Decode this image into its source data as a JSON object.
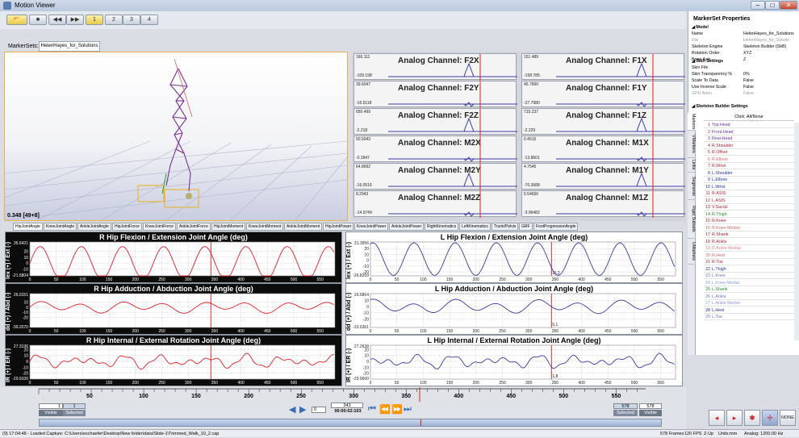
{
  "window": {
    "title": "Motion Viewer"
  },
  "toolbar": {
    "buttons": [
      "open",
      "stop",
      "rewind",
      "forward",
      "1",
      "2",
      "3",
      "4"
    ]
  },
  "markersets": {
    "label": "MarkerSets:",
    "tab": "HelenHayes_for_Solutions"
  },
  "view3d": {
    "readout": "0.348 [49+8]"
  },
  "analog": [
    {
      "name": "Analog Channel: F2X",
      "max": "166.111",
      "min": "-109.198"
    },
    {
      "name": "Analog Channel: F1X",
      "max": "151.489",
      "min": "-158.785"
    },
    {
      "name": "Analog Channel: F2Y",
      "max": "39.6047",
      "min": "-16.9118"
    },
    {
      "name": "Analog Channel: F1Y",
      "max": "45.7650",
      "min": "-27.7980"
    },
    {
      "name": "Analog Channel: F2Z",
      "max": "650.499",
      "min": "-2.218"
    },
    {
      "name": "Analog Channel: F1Z",
      "max": "715.237",
      "min": "-2.229"
    },
    {
      "name": "Analog Channel: M2X",
      "max": "50.5043",
      "min": "-0.1847"
    },
    {
      "name": "Analog Channel: M1X",
      "max": "0.4515",
      "min": "-13.8601"
    },
    {
      "name": "Analog Channel: M2Y",
      "max": "64.8692",
      "min": "-16.0516"
    },
    {
      "name": "Analog Channel: M1Y",
      "max": "4.7545",
      "min": "-70.3688"
    },
    {
      "name": "Analog Channel: M2Z",
      "max": "8.2943",
      "min": "-14.9749"
    },
    {
      "name": "Analog Channel: M1Z",
      "max": "6.54656",
      "min": "-3.96482"
    }
  ],
  "tabs": [
    "HipJointAngle",
    "KneeJointAngle",
    "AnkleJointAngle",
    "HipJointForce",
    "KneeJointForce",
    "AnkleJointForce",
    "HipJointMoment",
    "KneeJointMoment",
    "AnkleJointMoment",
    "HipJointPower",
    "KneeJointPower",
    "AnkleJointPower",
    "RightKinematics",
    "LeftKinematics",
    "Trunk/Pelvis",
    "GRF",
    "FootProgressionAngle"
  ],
  "charts": [
    {
      "title": "R Hip Flexion / Extension Joint Angle (deg)",
      "ylabel": "lex (+) / Ext (-)",
      "ymax": "35.6421",
      "ymin": "-21.5804",
      "yticks": [
        "20",
        "10",
        "0",
        "-10"
      ],
      "color": "#e0202a",
      "dark": true
    },
    {
      "title": "L Hip Flexion / Extension Joint Angle (deg)",
      "ylabel": "lex (+) / Ext (-)",
      "ymax": "31.3956",
      "ymin": "-26.8269",
      "yticks": [
        "20",
        "10",
        "0",
        "-10",
        "-20"
      ],
      "color": "#3a3aa8",
      "dark": false,
      "cursor": "11.2"
    },
    {
      "title": "R Hip Adduction / Abduction Joint Angle (deg)",
      "ylabel": "dd (+) / Abd (-)",
      "ymax": "26.0151",
      "ymin": "-39.2070",
      "yticks": [
        "10",
        "0",
        "-10",
        "-20"
      ],
      "color": "#e0202a",
      "dark": true
    },
    {
      "title": "L Hip Adduction / Abduction Joint Angle (deg)",
      "ylabel": "dd (+) / Abd (-)",
      "ymax": "20.6864",
      "ymin": "-33.6361",
      "yticks": [
        "10",
        "0",
        "-10",
        "-20"
      ],
      "color": "#3a3aa8",
      "dark": false,
      "cursor": "5.1"
    },
    {
      "title": "R Hip Internal / External Rotation Joint Angle (deg)",
      "ylabel": "IR (+) / ER (-)",
      "ymax": "27.3136",
      "ymin": "-29.9106",
      "yticks": [
        "20",
        "10",
        "0",
        "-10",
        "-20"
      ],
      "color": "#e0202a",
      "dark": true
    },
    {
      "title": "L Hip Internal / External Rotation Joint Angle (deg)",
      "ylabel": "IR (+) / ER (-)",
      "ymax": "27.2638",
      "ymin": "-29.9600",
      "yticks": [
        "20",
        "10",
        "0",
        "-10",
        "-20"
      ],
      "color": "#3a3aa8",
      "dark": false,
      "cursor": "1.8"
    }
  ],
  "xticks": [
    "0",
    "50",
    "100",
    "150",
    "200",
    "250",
    "300",
    "350",
    "400",
    "450",
    "500",
    "550"
  ],
  "timeline": {
    "ticks": [
      "50",
      "100",
      "150",
      "200",
      "250",
      "300",
      "350",
      "400",
      "450",
      "500",
      "550"
    ],
    "left_value": "1",
    "left_value2": "1",
    "visible": "Visible",
    "selected": "Selected",
    "right_value": "578",
    "right_value2": "578",
    "frame": "343",
    "frame_spin": "0",
    "time": "00:00:02:103"
  },
  "status": {
    "left": "(9) 17:04:48 - Loaded Capture: C:\\Users\\eschaefer\\Desktop\\New folder\\data\\Slide-1\\Trimmed_Walk_10_2.cap",
    "frames": "578 Frames",
    "fps": "120 FPS",
    "zup": "Z-Up",
    "units": "Units:mm",
    "analog": "Analog: 1200.00 Hz"
  },
  "props": {
    "title": "MarkerSet Properties",
    "model_header": "Model",
    "rows": [
      {
        "k": "Name",
        "v": "HelenHayes_for_Solutions"
      },
      {
        "k": "File",
        "v": "HelenHayes_for_Solutio"
      },
      {
        "k": "Skeleton Engine",
        "v": "Skeleton Builder (SkB)"
      },
      {
        "k": "Rotation Order",
        "v": "XYZ"
      },
      {
        "k": "Bone Axis",
        "v": "Z"
      }
    ],
    "skin_header": "Skin Settings",
    "skin_rows": [
      {
        "k": "Skin File",
        "v": ""
      },
      {
        "k": "Skin Transparency %",
        "v": "0%"
      },
      {
        "k": "Scale To Data",
        "v": "False"
      },
      {
        "k": "Use Inverse Scale",
        "v": "False"
      },
      {
        "k": "GPU Anim",
        "v": "False"
      }
    ],
    "builder_header": "Skeleton Builder Settings"
  },
  "vtabs": [
    "Markers",
    "VMarkers",
    "Links",
    "Segments",
    "Rigid Subsets",
    "UMarkers"
  ],
  "markers": {
    "header": "Click: All/None",
    "items": [
      {
        "n": "1",
        "name": "Top.Head",
        "c": "#6b2fa0"
      },
      {
        "n": "2",
        "name": "Front.Head",
        "c": "#6b2fa0"
      },
      {
        "n": "3",
        "name": "Rear.Head",
        "c": "#6b2fa0"
      },
      {
        "n": "4",
        "name": "R.Shoulder",
        "c": "#b02030"
      },
      {
        "n": "5",
        "name": "R.Offset",
        "c": "#b02030"
      },
      {
        "n": "6",
        "name": "R.Elbow",
        "c": "#d06a6a"
      },
      {
        "n": "7",
        "name": "R.Wrist",
        "c": "#b02030"
      },
      {
        "n": "8",
        "name": "L.Shoulder",
        "c": "#2030a0"
      },
      {
        "n": "9",
        "name": "L.Elbow",
        "c": "#2030a0"
      },
      {
        "n": "10",
        "name": "L.Wrist",
        "c": "#2030a0"
      },
      {
        "n": "11",
        "name": "R.ASIS",
        "c": "#b02030"
      },
      {
        "n": "12",
        "name": "L.ASIS",
        "c": "#b02030"
      },
      {
        "n": "13",
        "name": "V.Sacral",
        "c": "#b02030"
      },
      {
        "n": "14",
        "name": "R.Thigh",
        "c": "#2a8a2a"
      },
      {
        "n": "15",
        "name": "R.Knee",
        "c": "#b02030"
      },
      {
        "n": "16",
        "name": "R.Knee Medial",
        "c": "#d06a6a"
      },
      {
        "n": "17",
        "name": "R.Shank",
        "c": "#b02030"
      },
      {
        "n": "18",
        "name": "R.Ankle",
        "c": "#b02030"
      },
      {
        "n": "19",
        "name": "R.Ankle Medial",
        "c": "#d08a8a"
      },
      {
        "n": "20",
        "name": "R.Heel",
        "c": "#d06a6a"
      },
      {
        "n": "21",
        "name": "R.Toe",
        "c": "#b02030"
      },
      {
        "n": "22",
        "name": "L.Thigh",
        "c": "#2030a0"
      },
      {
        "n": "23",
        "name": "L.Knee",
        "c": "#6a7ac0"
      },
      {
        "n": "24",
        "name": "L.Knee Medial",
        "c": "#8a9ad0"
      },
      {
        "n": "25",
        "name": "L.Shank",
        "c": "#2a8a2a"
      },
      {
        "n": "26",
        "name": "L.Ankle",
        "c": "#6a7ac0"
      },
      {
        "n": "27",
        "name": "L.Ankle Medial",
        "c": "#8a9ad0"
      },
      {
        "n": "28",
        "name": "L.Heel",
        "c": "#2030a0"
      },
      {
        "n": "29",
        "name": "L.Toe",
        "c": "#6a7ac0"
      }
    ]
  },
  "bottom_buttons": {
    "none": "NONE"
  }
}
